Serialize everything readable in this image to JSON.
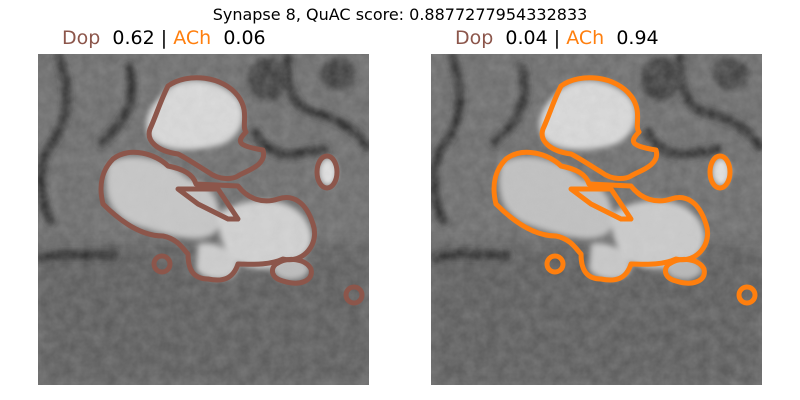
{
  "figure": {
    "suptitle": "Synapse 8, QuAC score: 0.8877277954332833"
  },
  "panels": [
    {
      "class_a_label": "Dop",
      "class_a_score": "0.62",
      "separator": "|",
      "class_b_label": "ACh",
      "class_b_score": "0.06",
      "contour_color": "#8c564b"
    },
    {
      "class_a_label": "Dop",
      "class_a_score": "0.04",
      "separator": "|",
      "class_b_label": "ACh",
      "class_b_score": "0.94",
      "contour_color": "#ff7f0e"
    }
  ],
  "colors": {
    "dop": "#8c564b",
    "ach": "#ff7f0e"
  }
}
